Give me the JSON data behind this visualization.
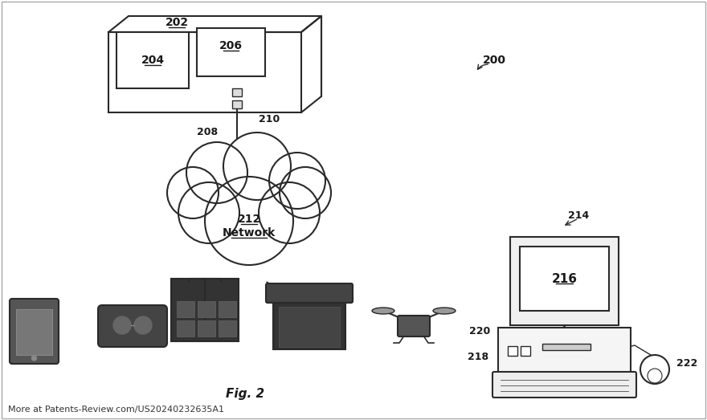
{
  "bg_color": "#ffffff",
  "line_color": "#2a2a2a",
  "label_color": "#1a1a1a",
  "fig_label": "Fig. 2",
  "footer": "More at Patents-Review.com/US20240232635A1",
  "ref_200": "200",
  "ref_202": "202",
  "ref_204": "204",
  "ref_206": "206",
  "ref_208": "208",
  "ref_210": "210",
  "ref_212": "212",
  "ref_214": "214",
  "ref_216": "216",
  "ref_218": "218",
  "ref_220": "220",
  "ref_222": "222"
}
